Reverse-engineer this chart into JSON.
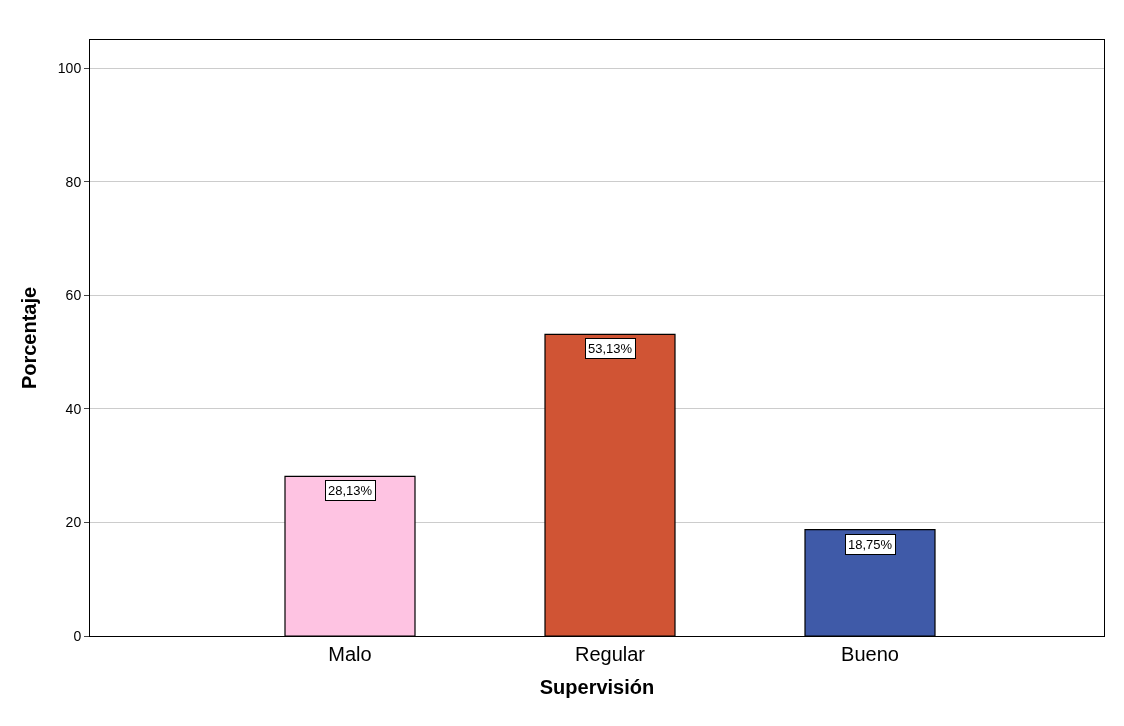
{
  "chart_data": {
    "type": "bar",
    "xlabel": "Supervisión",
    "ylabel": "Porcentaje",
    "categories": [
      "Malo",
      "Regular",
      "Bueno"
    ],
    "values": [
      28.13,
      53.13,
      18.75
    ],
    "value_labels": [
      "28,13%",
      "53,13%",
      "18,75%"
    ],
    "colors": [
      "#fec3e2",
      "#d05434",
      "#3f5aa8"
    ],
    "ylim": [
      0,
      105
    ],
    "yticks": [
      0,
      20,
      40,
      60,
      80,
      100
    ],
    "grid": "y"
  }
}
